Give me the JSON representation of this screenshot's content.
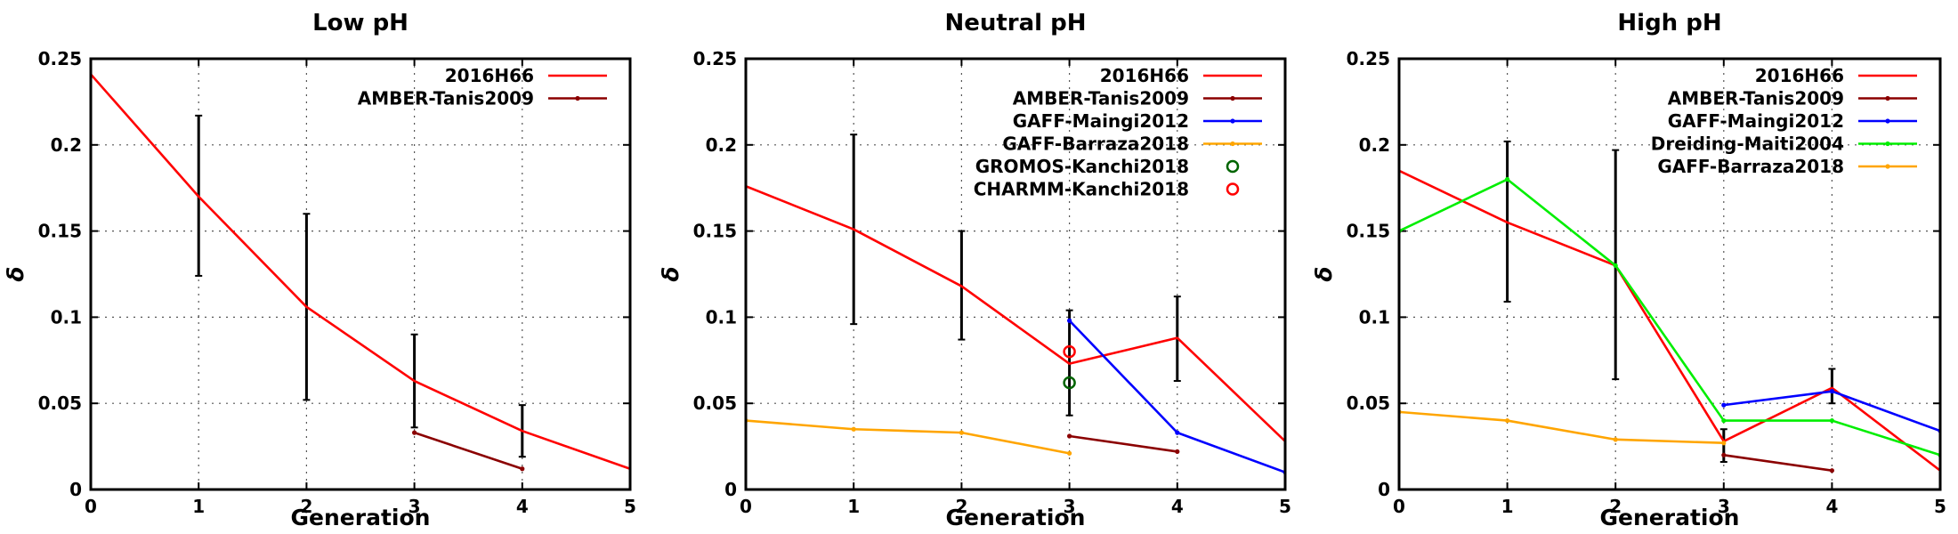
{
  "chart_data": [
    {
      "type": "line",
      "title": "Low pH",
      "xlabel": "Generation",
      "ylabel": "δ",
      "xlim": [
        0,
        5
      ],
      "ylim": [
        0,
        0.25
      ],
      "xticks": [
        "0",
        "1",
        "2",
        "3",
        "4",
        "5"
      ],
      "yticks": [
        "0",
        "0.05",
        "0.1",
        "0.15",
        "0.2",
        "0.25"
      ],
      "grid": true,
      "legend_position": "top-right",
      "series": [
        {
          "name": "2016H66",
          "style": "line",
          "color": "#ff0000",
          "points": [
            [
              0,
              0.241
            ],
            [
              1,
              0.17
            ],
            [
              2,
              0.106
            ],
            [
              3,
              0.063
            ],
            [
              4,
              0.034
            ],
            [
              5,
              0.012
            ]
          ]
        },
        {
          "name": "AMBER-Tanis2009",
          "style": "line-points",
          "color": "#8b0000",
          "points": [
            [
              3,
              0.033
            ],
            [
              4,
              0.012
            ]
          ]
        }
      ],
      "error_bars": [
        {
          "x": 1,
          "low": 0.124,
          "high": 0.217
        },
        {
          "x": 2,
          "low": 0.052,
          "high": 0.16
        },
        {
          "x": 3,
          "low": 0.036,
          "high": 0.09
        },
        {
          "x": 4,
          "low": 0.019,
          "high": 0.049
        }
      ]
    },
    {
      "type": "line",
      "title": "Neutral pH",
      "xlabel": "Generation",
      "ylabel": "δ",
      "xlim": [
        0,
        5
      ],
      "ylim": [
        0,
        0.25
      ],
      "xticks": [
        "0",
        "1",
        "2",
        "3",
        "4",
        "5"
      ],
      "yticks": [
        "0",
        "0.05",
        "0.1",
        "0.15",
        "0.2",
        "0.25"
      ],
      "grid": true,
      "legend_position": "top-right",
      "series": [
        {
          "name": "2016H66",
          "style": "line",
          "color": "#ff0000",
          "points": [
            [
              0,
              0.176
            ],
            [
              1,
              0.151
            ],
            [
              2,
              0.118
            ],
            [
              3,
              0.073
            ],
            [
              4,
              0.088
            ],
            [
              5,
              0.028
            ]
          ]
        },
        {
          "name": "AMBER-Tanis2009",
          "style": "line-points",
          "color": "#8b0000",
          "points": [
            [
              3,
              0.031
            ],
            [
              4,
              0.022
            ]
          ]
        },
        {
          "name": "GAFF-Maingi2012",
          "style": "line-points",
          "color": "#0000ff",
          "points": [
            [
              3,
              0.098
            ],
            [
              4,
              0.033
            ],
            [
              5,
              0.01
            ]
          ]
        },
        {
          "name": "GAFF-Barraza2018",
          "style": "line-points",
          "color": "#ffa500",
          "points": [
            [
              0,
              0.04
            ],
            [
              1,
              0.035
            ],
            [
              2,
              0.033
            ],
            [
              3,
              0.021
            ]
          ]
        },
        {
          "name": "GROMOS-Kanchi2018",
          "style": "circle",
          "color": "#006400",
          "points": [
            [
              3,
              0.062
            ]
          ]
        },
        {
          "name": "CHARMM-Kanchi2018",
          "style": "circle",
          "color": "#ff0000",
          "points": [
            [
              3,
              0.08
            ]
          ]
        }
      ],
      "error_bars": [
        {
          "x": 1,
          "low": 0.096,
          "high": 0.206
        },
        {
          "x": 2,
          "low": 0.087,
          "high": 0.15
        },
        {
          "x": 3,
          "low": 0.043,
          "high": 0.104
        },
        {
          "x": 4,
          "low": 0.063,
          "high": 0.112
        }
      ]
    },
    {
      "type": "line",
      "title": "High pH",
      "xlabel": "Generation",
      "ylabel": "δ",
      "xlim": [
        0,
        5
      ],
      "ylim": [
        0,
        0.25
      ],
      "xticks": [
        "0",
        "1",
        "2",
        "3",
        "4",
        "5"
      ],
      "yticks": [
        "0",
        "0.05",
        "0.1",
        "0.15",
        "0.2",
        "0.25"
      ],
      "grid": true,
      "legend_position": "top-right",
      "series": [
        {
          "name": "2016H66",
          "style": "line",
          "color": "#ff0000",
          "points": [
            [
              0,
              0.185
            ],
            [
              1,
              0.155
            ],
            [
              2,
              0.13
            ],
            [
              3,
              0.028
            ],
            [
              4,
              0.059
            ],
            [
              5,
              0.011
            ]
          ]
        },
        {
          "name": "AMBER-Tanis2009",
          "style": "line-points",
          "color": "#8b0000",
          "points": [
            [
              3,
              0.02
            ],
            [
              4,
              0.011
            ]
          ]
        },
        {
          "name": "GAFF-Maingi2012",
          "style": "line-points",
          "color": "#0000ff",
          "points": [
            [
              3,
              0.049
            ],
            [
              4,
              0.057
            ],
            [
              5,
              0.034
            ]
          ]
        },
        {
          "name": "Dreiding-Maiti2004",
          "style": "line-points",
          "color": "#00ee00",
          "points": [
            [
              0,
              0.15
            ],
            [
              1,
              0.18
            ],
            [
              2,
              0.13
            ],
            [
              3,
              0.04
            ],
            [
              4,
              0.04
            ],
            [
              5,
              0.02
            ]
          ]
        },
        {
          "name": "GAFF-Barraza2018",
          "style": "line-points",
          "color": "#ffa500",
          "points": [
            [
              0,
              0.045
            ],
            [
              1,
              0.04
            ],
            [
              2,
              0.029
            ],
            [
              3,
              0.027
            ]
          ]
        }
      ],
      "error_bars": [
        {
          "x": 1,
          "low": 0.109,
          "high": 0.202
        },
        {
          "x": 2,
          "low": 0.064,
          "high": 0.197
        },
        {
          "x": 3,
          "low": 0.016,
          "high": 0.035
        },
        {
          "x": 4,
          "low": 0.05,
          "high": 0.07
        }
      ]
    }
  ]
}
